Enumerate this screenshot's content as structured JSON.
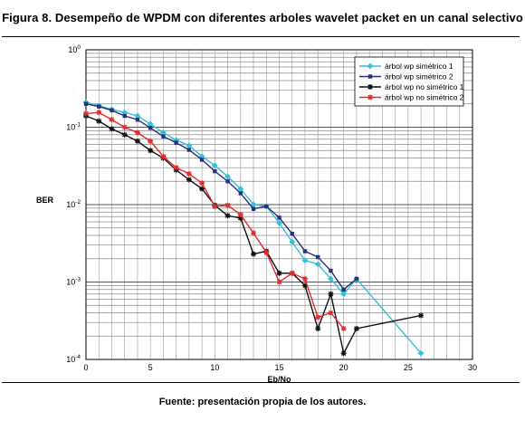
{
  "figure": {
    "title": "Figura 8. Desempeño de WPDM con diferentes arboles wavelet packet en un canal selectivo",
    "source": "Fuente: presentación propia de los autores."
  },
  "chart_data": {
    "type": "line",
    "yscale": "log",
    "xlabel": "Eb/No",
    "ylabel": "BER",
    "xlim": [
      0,
      30
    ],
    "ylim": [
      0.0001,
      1
    ],
    "xticks": [
      0,
      5,
      10,
      15,
      20,
      25,
      30
    ],
    "yticks": [
      {
        "value": 1,
        "base": "10",
        "exp": "0"
      },
      {
        "value": 0.1,
        "base": "10",
        "exp": "-1"
      },
      {
        "value": 0.01,
        "base": "10",
        "exp": "-2"
      },
      {
        "value": 0.001,
        "base": "10",
        "exp": "-3"
      },
      {
        "value": 0.0001,
        "base": "10",
        "exp": "-4"
      }
    ],
    "grid": true,
    "legend_position": "top-right",
    "series": [
      {
        "name": "árbol wp simétrico 1",
        "color": "#35c0d8",
        "marker": "diamond",
        "x": [
          0,
          1,
          2,
          3,
          4,
          5,
          6,
          7,
          8,
          9,
          10,
          11,
          12,
          13,
          14,
          15,
          16,
          17,
          18,
          19,
          20,
          21,
          26
        ],
        "y": [
          0.21,
          0.19,
          0.17,
          0.155,
          0.14,
          0.11,
          0.085,
          0.068,
          0.058,
          0.042,
          0.032,
          0.023,
          0.016,
          0.01,
          0.0095,
          0.0058,
          0.0033,
          0.0019,
          0.0017,
          0.0011,
          0.0007,
          0.0011,
          0.00012
        ]
      },
      {
        "name": "árbol wp simétrico 2",
        "color": "#2a2f7e",
        "marker": "square",
        "x": [
          0,
          1,
          2,
          3,
          4,
          5,
          6,
          7,
          8,
          9,
          10,
          11,
          12,
          13,
          14,
          15,
          16,
          17,
          18,
          19,
          20,
          21
        ],
        "y": [
          0.2,
          0.185,
          0.165,
          0.14,
          0.125,
          0.098,
          0.076,
          0.063,
          0.051,
          0.038,
          0.027,
          0.02,
          0.014,
          0.0088,
          0.0095,
          0.0068,
          0.0042,
          0.0025,
          0.0021,
          0.0014,
          0.0008,
          0.0011
        ]
      },
      {
        "name": "árbol wp no simétrico 1",
        "color": "#111111",
        "marker": "star",
        "x": [
          0,
          1,
          2,
          3,
          4,
          5,
          6,
          7,
          8,
          9,
          10,
          11,
          12,
          13,
          14,
          15,
          16,
          17,
          18,
          19,
          20,
          21,
          26
        ],
        "y": [
          0.14,
          0.12,
          0.095,
          0.08,
          0.066,
          0.05,
          0.04,
          0.028,
          0.021,
          0.016,
          0.0098,
          0.0072,
          0.0067,
          0.0023,
          0.0025,
          0.0013,
          0.0013,
          0.0009,
          0.00025,
          0.0007,
          0.00012,
          0.00025,
          0.00037
        ]
      },
      {
        "name": "árbol wp no simétrico 2",
        "color": "#e32a2a",
        "marker": "star",
        "x": [
          0,
          1,
          2,
          3,
          4,
          5,
          6,
          7,
          8,
          9,
          10,
          11,
          12,
          13,
          14,
          15,
          16,
          17,
          18,
          19,
          20
        ],
        "y": [
          0.15,
          0.155,
          0.125,
          0.1,
          0.085,
          0.066,
          0.042,
          0.03,
          0.025,
          0.019,
          0.0095,
          0.0098,
          0.0074,
          0.0043,
          0.0024,
          0.001,
          0.0013,
          0.0011,
          0.00035,
          0.0004,
          0.00025
        ]
      }
    ]
  }
}
